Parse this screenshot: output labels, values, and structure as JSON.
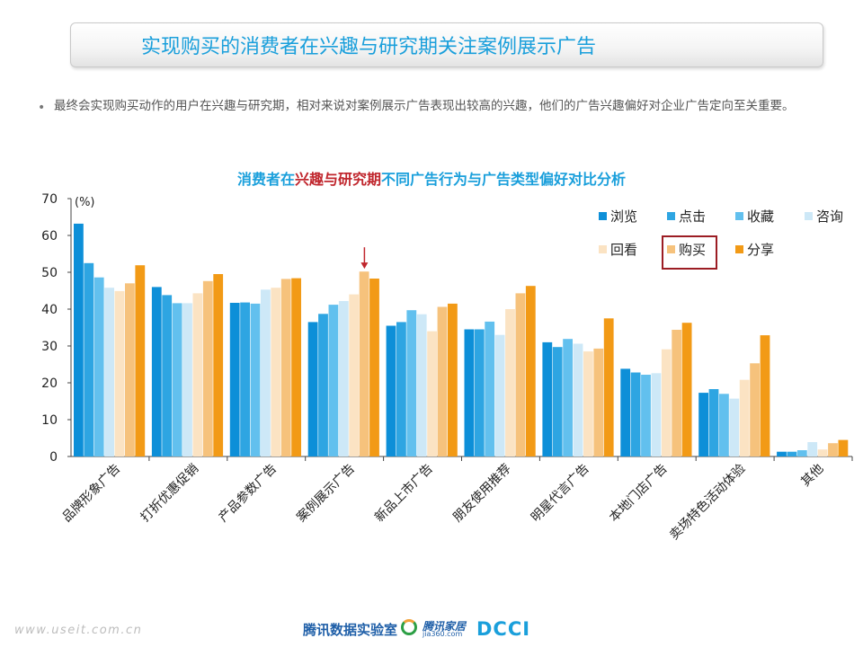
{
  "header": {
    "title": "实现购买的消费者在兴趣与研究期关注案例展示广告"
  },
  "bullet": {
    "marker": "•",
    "text": "最终会实现购买动作的用户在兴趣与研究期，相对来说对案例展示广告表现出较高的兴趣，他们的广告兴趣偏好对企业广告定向至关重要。"
  },
  "chart_title": {
    "part1": "消费者在",
    "part2": "兴趣与研究期",
    "part3": "不同广告行为与广告类型偏好对比分析"
  },
  "chart_data": {
    "type": "bar",
    "unit_label": "(%)",
    "ylim": [
      0,
      70
    ],
    "yticks": [
      0,
      10,
      20,
      30,
      40,
      50,
      60,
      70
    ],
    "grid": false,
    "legend_position": "top-right",
    "categories": [
      "品牌形象广告",
      "打折优惠促销",
      "产品参数广告",
      "案例展示广告",
      "新品上市广告",
      "朋友使用推荐",
      "明星代言广告",
      "本地门店广告",
      "卖场特色活动体验",
      "其他"
    ],
    "series": [
      {
        "name": "浏览",
        "color": "#0d8fd8",
        "values": [
          63.2,
          46.0,
          41.7,
          36.5,
          35.5,
          34.5,
          31.0,
          23.8,
          17.3,
          1.3
        ]
      },
      {
        "name": "点击",
        "color": "#2ea5e2",
        "values": [
          52.5,
          43.8,
          41.8,
          38.7,
          36.5,
          34.5,
          29.7,
          22.8,
          18.3,
          1.3
        ]
      },
      {
        "name": "收藏",
        "color": "#62c0ee",
        "values": [
          48.6,
          41.6,
          41.5,
          41.2,
          39.7,
          36.6,
          31.9,
          22.2,
          17.0,
          1.7
        ]
      },
      {
        "name": "咨询",
        "color": "#cde8f7",
        "values": [
          45.8,
          41.6,
          45.3,
          42.2,
          38.6,
          33.0,
          30.6,
          22.6,
          15.7,
          3.9
        ]
      },
      {
        "name": "回看",
        "color": "#fbe3c3",
        "values": [
          44.9,
          44.3,
          45.8,
          44.0,
          34.0,
          40.0,
          28.5,
          29.1,
          20.8,
          1.9
        ]
      },
      {
        "name": "购买",
        "color": "#f6c27c",
        "values": [
          47.0,
          47.6,
          48.2,
          50.2,
          40.6,
          44.3,
          29.3,
          34.4,
          25.3,
          3.6
        ]
      },
      {
        "name": "分享",
        "color": "#f29a16",
        "values": [
          51.9,
          49.5,
          48.4,
          48.3,
          41.5,
          46.3,
          37.5,
          36.3,
          32.9,
          4.5
        ]
      }
    ],
    "highlight_category": "案例展示广告",
    "highlight_series": "购买"
  },
  "footer": {
    "url": "www.useit.com.cn",
    "lab": "腾讯数据实验室",
    "partner_name": "腾讯家居",
    "partner_domain": "jia360.com",
    "brand": "DCCI"
  }
}
